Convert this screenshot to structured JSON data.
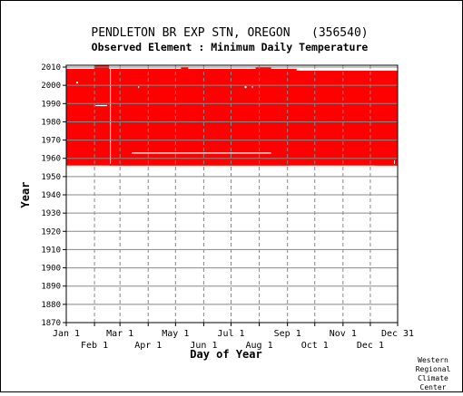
{
  "header": {
    "title": "PENDLETON BR EXP STN, OREGON   (356540)",
    "subtitle": "Observed Element : Minimum Daily Temperature"
  },
  "credit": [
    "Western",
    "Regional",
    "Climate",
    "Center"
  ],
  "colors": {
    "data": "#ff0000",
    "grid": "#888888",
    "axis": "#000000",
    "background": "#ffffff"
  },
  "chart_data": {
    "type": "heatmap",
    "title": "PENDLETON BR EXP STN, OREGON   (356540)",
    "subtitle": "Observed Element : Minimum Daily Temperature",
    "xlabel": "Day of Year",
    "ylabel": "Year",
    "xlim": [
      1,
      365
    ],
    "ylim": [
      1870,
      2011
    ],
    "grid": true,
    "x_ticks_top_row": [
      {
        "label": "Jan 1",
        "day": 1
      },
      {
        "label": "Mar 1",
        "day": 60
      },
      {
        "label": "May 1",
        "day": 121
      },
      {
        "label": "Jul 1",
        "day": 182
      },
      {
        "label": "Sep 1",
        "day": 244
      },
      {
        "label": "Nov 1",
        "day": 305
      },
      {
        "label": "Dec 31",
        "day": 365
      }
    ],
    "x_ticks_bottom_row": [
      {
        "label": "Feb 1",
        "day": 32
      },
      {
        "label": "Apr 1",
        "day": 91
      },
      {
        "label": "Jun 1",
        "day": 152
      },
      {
        "label": "Aug 1",
        "day": 213
      },
      {
        "label": "Oct 1",
        "day": 274
      },
      {
        "label": "Dec 1",
        "day": 335
      }
    ],
    "y_ticks": [
      1870,
      1880,
      1890,
      1900,
      1910,
      1920,
      1930,
      1940,
      1950,
      1960,
      1970,
      1980,
      1990,
      2000,
      2010
    ],
    "series": [
      {
        "description": "days with observed data",
        "color": "#ff0000",
        "covered_spans": [
          {
            "day_start": 1,
            "day_end": 365,
            "year_start": 1956,
            "year_end": 2009
          }
        ],
        "extra_coverage": [
          {
            "day_start": 32,
            "day_end": 48,
            "year_start": 2009,
            "year_end": 2011
          },
          {
            "day_start": 127,
            "day_end": 135,
            "year_start": 2009,
            "year_end": 2010
          },
          {
            "day_start": 209,
            "day_end": 226,
            "year_start": 2009,
            "year_end": 2010
          }
        ],
        "missing_spans": [
          {
            "day_start": 1,
            "day_end": 48,
            "year_start": 1955,
            "year_end": 1956
          },
          {
            "day_start": 246,
            "day_end": 340,
            "year_start": 1955,
            "year_end": 1956
          },
          {
            "day_start": 254,
            "day_end": 365,
            "year_start": 2008,
            "year_end": 2009
          },
          {
            "day_start": 33,
            "day_end": 46,
            "year_start": 1988.6,
            "year_end": 1989.2
          },
          {
            "day_start": 73,
            "day_end": 226,
            "year_start": 1962.6,
            "year_end": 1963.2
          },
          {
            "day_start": 12,
            "day_end": 14,
            "year_start": 2001,
            "year_end": 2002
          },
          {
            "day_start": 80,
            "day_end": 81,
            "year_start": 1998.5,
            "year_end": 1999.5
          },
          {
            "day_start": 197,
            "day_end": 199,
            "year_start": 1998.5,
            "year_end": 1999.5
          },
          {
            "day_start": 205,
            "day_end": 206,
            "year_start": 1998.5,
            "year_end": 1999.5
          },
          {
            "day_start": 49,
            "day_end": 50,
            "year_start": 1957,
            "year_end": 2009
          },
          {
            "day_start": 361,
            "day_end": 362,
            "year_start": 1957,
            "year_end": 1959
          }
        ]
      }
    ]
  }
}
